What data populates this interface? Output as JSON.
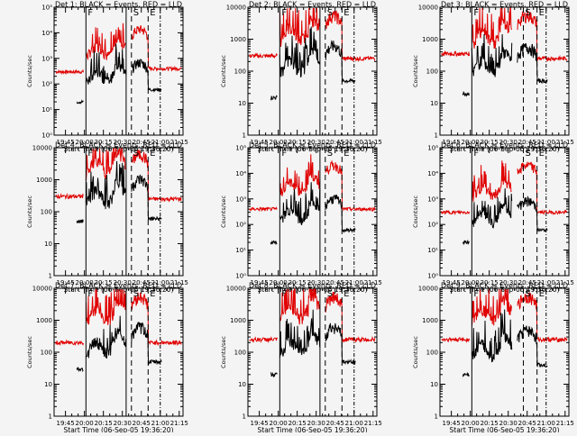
{
  "chart_data": {
    "type": "line",
    "x_tick_labels": [
      "19:45",
      "20:00",
      "20:15",
      "20:30",
      "20:45",
      "21:00",
      "21:15"
    ],
    "x_ticks_hours": [
      19.75,
      20.0,
      20.25,
      20.5,
      20.75,
      21.0,
      21.25
    ],
    "xlim_hours": [
      19.6,
      21.3
    ],
    "xlabel": "Start Time (06-Sep-05 19:36:20)",
    "ylabel": "Counts/sec",
    "y_scale": "log",
    "series_colors": {
      "events": "#000000",
      "lld": "#e00000"
    },
    "panels": [
      {
        "title": "Det 1: BLACK = Events, RED = LLD",
        "ylim": [
          1,
          100000
        ],
        "y_tick_labels": [
          "10⁰",
          "10¹",
          "10²",
          "10³",
          "10⁴",
          "10⁵"
        ],
        "markers": [
          {
            "x": 20.02,
            "style": "solid",
            "label": "F"
          },
          {
            "x": 20.55,
            "style": "solid",
            "label": ""
          },
          {
            "x": 20.62,
            "style": "dashed",
            "label": "S"
          },
          {
            "x": 20.84,
            "style": "dashed",
            "label": "E"
          },
          {
            "x": 21.0,
            "style": "dotted",
            "label": ""
          }
        ],
        "lld": {
          "base": 300,
          "mid": 2000,
          "high": 20000,
          "tail": 400
        },
        "events": {
          "base": 20,
          "mid": 200,
          "high": 1000,
          "tail": 60
        }
      },
      {
        "title": "Det 2: BLACK = Events, RED = LLD",
        "ylim": [
          1,
          10000
        ],
        "y_tick_labels": [
          "1",
          "10",
          "100",
          "1000",
          "10000"
        ],
        "markers": [
          {
            "x": 20.02,
            "style": "solid",
            "label": "F"
          },
          {
            "x": 20.55,
            "style": "solid",
            "label": ""
          },
          {
            "x": 20.62,
            "style": "dashed",
            "label": "S"
          },
          {
            "x": 20.84,
            "style": "dashed",
            "label": "E"
          },
          {
            "x": 21.0,
            "style": "dotted",
            "label": ""
          }
        ],
        "lld": {
          "base": 300,
          "mid": 1500,
          "high": 8000,
          "tail": 250
        },
        "events": {
          "base": 15,
          "mid": 150,
          "high": 900,
          "tail": 50
        }
      },
      {
        "title": "Det 3: BLACK = Events, RED = LLD",
        "ylim": [
          1,
          10000
        ],
        "y_tick_labels": [
          "1",
          "10",
          "100",
          "1000",
          "10000"
        ],
        "markers": [
          {
            "x": 20.02,
            "style": "solid",
            "label": "F"
          },
          {
            "x": 20.7,
            "style": "dashed",
            "label": "S"
          },
          {
            "x": 20.88,
            "style": "dashed",
            "label": "E"
          },
          {
            "x": 21.0,
            "style": "dotted",
            "label": ""
          }
        ],
        "lld": {
          "base": 350,
          "mid": 1200,
          "high": 8000,
          "tail": 250
        },
        "events": {
          "base": 20,
          "mid": 150,
          "high": 800,
          "tail": 50
        }
      },
      {
        "title": "Det 4: BLACK = Events, RED = LLD",
        "ylim": [
          1,
          10000
        ],
        "y_tick_labels": [
          "1",
          "10",
          "100",
          "1000",
          "10000"
        ],
        "markers": [
          {
            "x": 20.02,
            "style": "solid",
            "label": "F"
          },
          {
            "x": 20.55,
            "style": "solid",
            "label": ""
          },
          {
            "x": 20.62,
            "style": "dashed",
            "label": "S"
          },
          {
            "x": 20.84,
            "style": "dashed",
            "label": "E"
          },
          {
            "x": 21.0,
            "style": "dotted",
            "label": ""
          }
        ],
        "lld": {
          "base": 300,
          "mid": 2500,
          "high": 9000,
          "tail": 250
        },
        "events": {
          "base": 50,
          "mid": 300,
          "high": 1500,
          "tail": 60
        }
      },
      {
        "title": "Det 5: BLACK = Events, RED = LLD",
        "ylim": [
          1,
          100000
        ],
        "y_tick_labels": [
          "10⁰",
          "10¹",
          "10²",
          "10³",
          "10⁴",
          "10⁵"
        ],
        "markers": [
          {
            "x": 20.02,
            "style": "solid",
            "label": "F"
          },
          {
            "x": 20.55,
            "style": "solid",
            "label": ""
          },
          {
            "x": 20.62,
            "style": "dashed",
            "label": "S"
          },
          {
            "x": 20.84,
            "style": "dashed",
            "label": "E"
          },
          {
            "x": 21.0,
            "style": "dotted",
            "label": ""
          }
        ],
        "lld": {
          "base": 400,
          "mid": 3000,
          "high": 30000,
          "tail": 400
        },
        "events": {
          "base": 20,
          "mid": 250,
          "high": 1500,
          "tail": 60
        }
      },
      {
        "title": "Det 6: BLACK = Events, RED = LLD",
        "ylim": [
          1,
          100000
        ],
        "y_tick_labels": [
          "10⁰",
          "10¹",
          "10²",
          "10³",
          "10⁴",
          "10⁵"
        ],
        "markers": [
          {
            "x": 20.02,
            "style": "solid",
            "label": "F"
          },
          {
            "x": 20.7,
            "style": "dashed",
            "label": "S"
          },
          {
            "x": 20.88,
            "style": "dashed",
            "label": "E"
          },
          {
            "x": 21.0,
            "style": "dotted",
            "label": ""
          }
        ],
        "lld": {
          "base": 300,
          "mid": 2000,
          "high": 30000,
          "tail": 300
        },
        "events": {
          "base": 20,
          "mid": 200,
          "high": 1200,
          "tail": 60
        }
      },
      {
        "title": "Det 7: BLACK = Events, RED = LLD",
        "ylim": [
          1,
          10000
        ],
        "y_tick_labels": [
          "1",
          "10",
          "100",
          "1000",
          "10000"
        ],
        "markers": [
          {
            "x": 20.02,
            "style": "solid",
            "label": "F"
          },
          {
            "x": 20.55,
            "style": "solid",
            "label": ""
          },
          {
            "x": 20.62,
            "style": "dashed",
            "label": "S"
          },
          {
            "x": 20.84,
            "style": "dashed",
            "label": "E"
          },
          {
            "x": 21.0,
            "style": "dotted",
            "label": ""
          }
        ],
        "lld": {
          "base": 200,
          "mid": 1500,
          "high": 8000,
          "tail": 200
        },
        "events": {
          "base": 30,
          "mid": 150,
          "high": 900,
          "tail": 50
        }
      },
      {
        "title": "Det 8: BLACK = Events, RED = LLD",
        "ylim": [
          1,
          10000
        ],
        "y_tick_labels": [
          "1",
          "10",
          "100",
          "1000",
          "10000"
        ],
        "markers": [
          {
            "x": 20.02,
            "style": "solid",
            "label": "F"
          },
          {
            "x": 20.55,
            "style": "solid",
            "label": ""
          },
          {
            "x": 20.62,
            "style": "dashed",
            "label": "S"
          },
          {
            "x": 20.84,
            "style": "dashed",
            "label": "E"
          },
          {
            "x": 21.0,
            "style": "dotted",
            "label": ""
          }
        ],
        "lld": {
          "base": 250,
          "mid": 1800,
          "high": 8000,
          "tail": 250
        },
        "events": {
          "base": 20,
          "mid": 150,
          "high": 900,
          "tail": 50
        }
      },
      {
        "title": "Det 9: BLACK = Events, RED = LLD",
        "ylim": [
          1,
          10000
        ],
        "y_tick_labels": [
          "1",
          "10",
          "100",
          "1000",
          "10000"
        ],
        "markers": [
          {
            "x": 20.02,
            "style": "solid",
            "label": "F"
          },
          {
            "x": 20.7,
            "style": "dashed",
            "label": "S"
          },
          {
            "x": 20.88,
            "style": "dashed",
            "label": "E"
          },
          {
            "x": 21.0,
            "style": "dotted",
            "label": ""
          }
        ],
        "lld": {
          "base": 250,
          "mid": 1500,
          "high": 8000,
          "tail": 250
        },
        "events": {
          "base": 20,
          "mid": 120,
          "high": 700,
          "tail": 40
        }
      }
    ]
  }
}
